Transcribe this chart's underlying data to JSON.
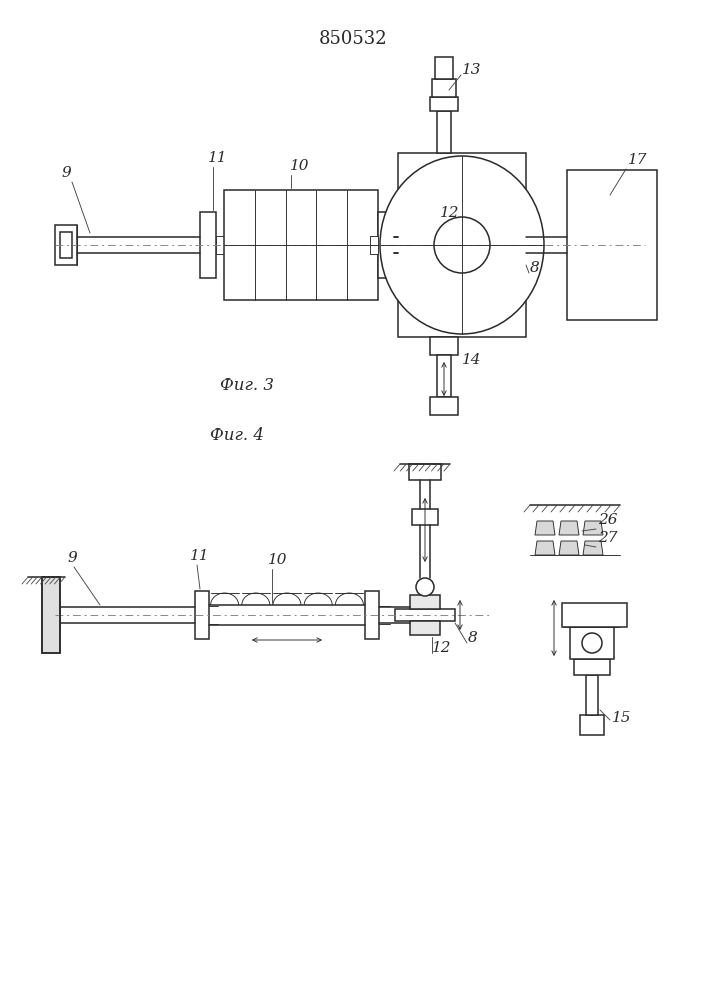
{
  "title": "850532",
  "line_color": "#2a2a2a",
  "bg_color": "#ffffff",
  "lw": 1.1,
  "lw_thin": 0.65,
  "lw_thick": 1.6,
  "fig3_label": "Фиг. 3",
  "fig4_label": "Фиг. 4"
}
